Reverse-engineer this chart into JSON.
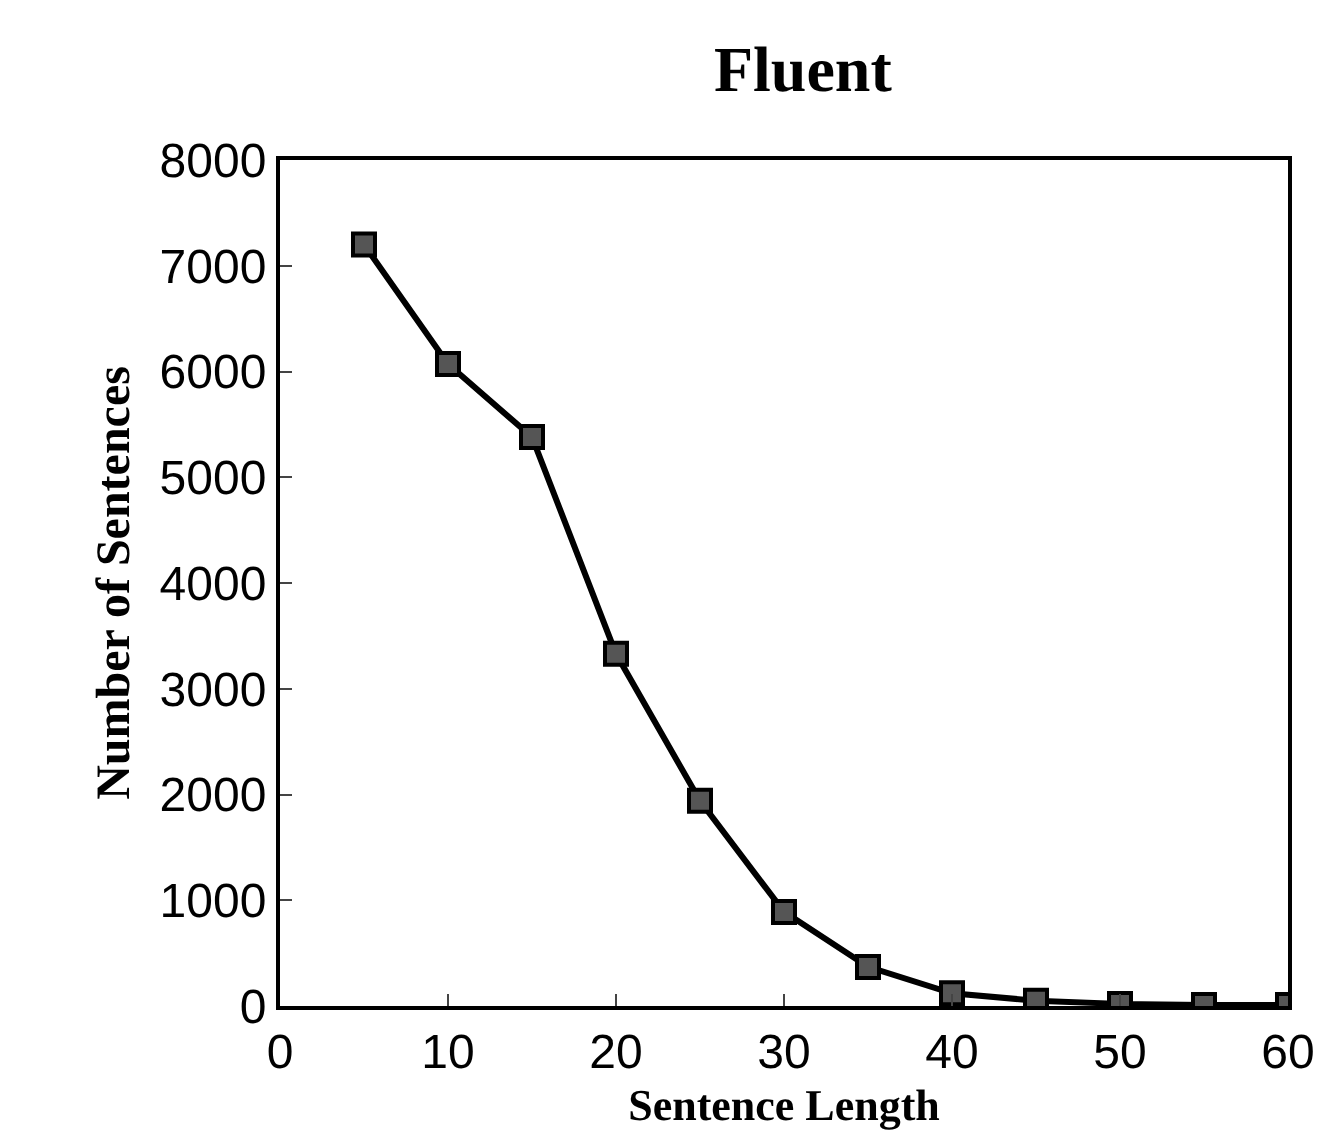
{
  "chart_data": {
    "type": "line",
    "title": "Fluent",
    "xlabel": "Sentence Length",
    "ylabel": "Number of Sentences",
    "x": [
      5,
      10,
      15,
      20,
      25,
      30,
      35,
      40,
      45,
      50,
      55,
      60
    ],
    "series": [
      {
        "color": "#000000",
        "values": [
          7200,
          6070,
          5380,
          3330,
          1940,
          890,
          370,
          120,
          50,
          20,
          10,
          10
        ]
      }
    ],
    "xlim": [
      0,
      60
    ],
    "xticks": [
      0,
      10,
      20,
      30,
      40,
      50,
      60
    ],
    "ylim": [
      0,
      8000
    ],
    "yticks": [
      0,
      1000,
      2000,
      3000,
      4000,
      5000,
      6000,
      7000,
      8000
    ],
    "marker": "square",
    "line_style": "solid"
  }
}
